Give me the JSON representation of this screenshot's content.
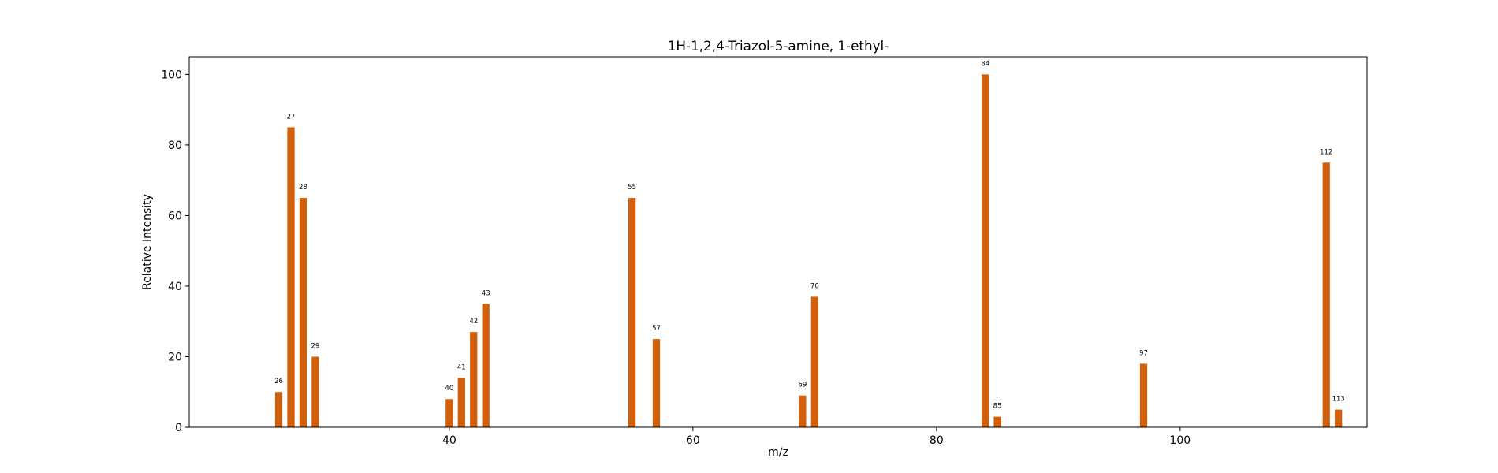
{
  "chart_data": {
    "type": "bar",
    "title": "1H-1,2,4-Triazol-5-amine, 1-ethyl-",
    "xlabel": "m/z",
    "ylabel": "Relative Intensity",
    "xlim": [
      18.65,
      115.35
    ],
    "ylim": [
      0,
      105
    ],
    "xticks": [
      40,
      60,
      80,
      100
    ],
    "yticks": [
      0,
      20,
      40,
      60,
      80,
      100
    ],
    "grid": false,
    "bar_color": "#d2600a",
    "x": [
      26,
      27,
      28,
      29,
      40,
      41,
      42,
      43,
      55,
      57,
      69,
      70,
      84,
      85,
      97,
      112,
      113
    ],
    "values": [
      10,
      85,
      65,
      20,
      8,
      14,
      27,
      35,
      65,
      25,
      9,
      37,
      100,
      3,
      18,
      75,
      5
    ],
    "labels": [
      "26",
      "27",
      "28",
      "29",
      "40",
      "41",
      "42",
      "43",
      "55",
      "57",
      "69",
      "70",
      "84",
      "85",
      "97",
      "112",
      "113"
    ]
  }
}
